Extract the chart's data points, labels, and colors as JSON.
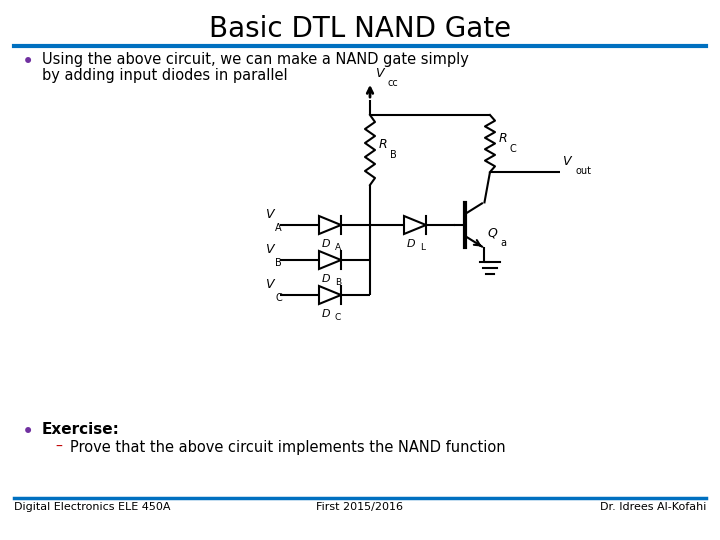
{
  "title": "Basic DTL NAND Gate",
  "title_fontsize": 20,
  "bullet1_line1": "Using the above circuit, we can make a NAND gate simply",
  "bullet1_line2": "by adding input diodes in parallel",
  "bullet2": "Exercise:",
  "sub_bullet": "Prove that the above circuit implements the NAND function",
  "footer_left": "Digital Electronics ELE 450A",
  "footer_mid": "First 2015/2016",
  "footer_right": "Dr. Idrees Al-Kofahi",
  "title_color": "#000000",
  "bullet_color": "#000000",
  "bullet_dot_color": "#7030A0",
  "sub_dash_color": "#C00000",
  "line_color": "#0070C0",
  "circuit_color": "#000000",
  "background": "#FFFFFF",
  "lw": 1.5
}
